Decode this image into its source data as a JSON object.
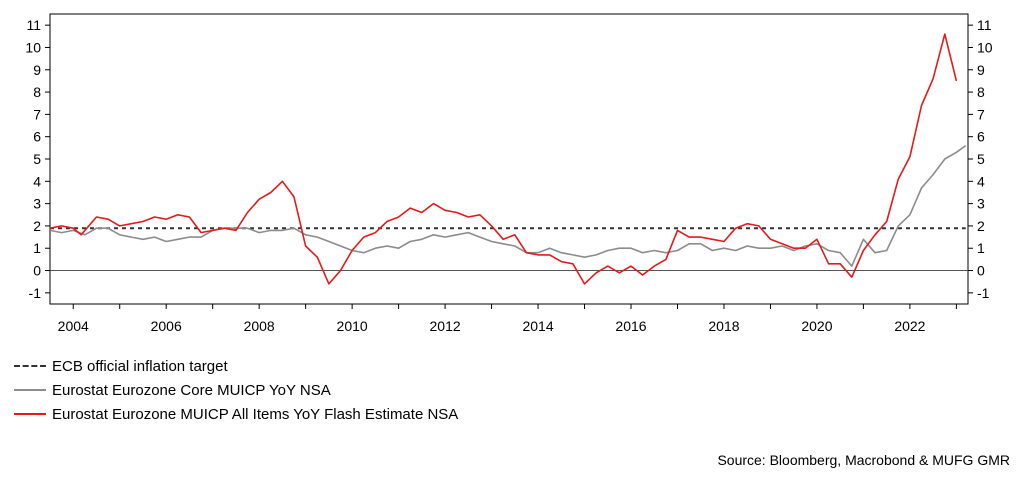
{
  "chart_data": {
    "type": "line",
    "x_range": [
      2003.5,
      2023.25
    ],
    "y_range": [
      -1.5,
      11.5
    ],
    "y_ticks": [
      -1,
      0,
      1,
      2,
      3,
      4,
      5,
      6,
      7,
      8,
      9,
      10,
      11
    ],
    "x_ticks": [
      2004,
      2006,
      2008,
      2010,
      2012,
      2014,
      2016,
      2018,
      2020,
      2022
    ],
    "x_tick_labels": [
      "2004",
      "2006",
      "2008",
      "2010",
      "2012",
      "2014",
      "2016",
      "2018",
      "2020",
      "2022"
    ],
    "zero_line": true,
    "dual_y_axis": true,
    "series": [
      {
        "name": "ECB official inflation target",
        "style": "dashed",
        "color": "#333333",
        "points": [
          [
            2003.5,
            1.9
          ],
          [
            2023.2,
            1.9
          ]
        ]
      },
      {
        "name": "Eurostat Eurozone Core MUICP YoY NSA",
        "style": "solid",
        "color": "#8c8c8c",
        "points": [
          [
            2003.5,
            1.8
          ],
          [
            2003.75,
            1.7
          ],
          [
            2004.0,
            1.8
          ],
          [
            2004.25,
            1.6
          ],
          [
            2004.5,
            1.9
          ],
          [
            2004.75,
            1.9
          ],
          [
            2005.0,
            1.6
          ],
          [
            2005.25,
            1.5
          ],
          [
            2005.5,
            1.4
          ],
          [
            2005.75,
            1.5
          ],
          [
            2006.0,
            1.3
          ],
          [
            2006.25,
            1.4
          ],
          [
            2006.5,
            1.5
          ],
          [
            2006.75,
            1.5
          ],
          [
            2007.0,
            1.8
          ],
          [
            2007.25,
            1.9
          ],
          [
            2007.5,
            1.9
          ],
          [
            2007.75,
            1.9
          ],
          [
            2008.0,
            1.7
          ],
          [
            2008.25,
            1.8
          ],
          [
            2008.5,
            1.8
          ],
          [
            2008.75,
            1.9
          ],
          [
            2009.0,
            1.6
          ],
          [
            2009.25,
            1.5
          ],
          [
            2009.5,
            1.3
          ],
          [
            2009.75,
            1.1
          ],
          [
            2010.0,
            0.9
          ],
          [
            2010.25,
            0.8
          ],
          [
            2010.5,
            1.0
          ],
          [
            2010.75,
            1.1
          ],
          [
            2011.0,
            1.0
          ],
          [
            2011.25,
            1.3
          ],
          [
            2011.5,
            1.4
          ],
          [
            2011.75,
            1.6
          ],
          [
            2012.0,
            1.5
          ],
          [
            2012.25,
            1.6
          ],
          [
            2012.5,
            1.7
          ],
          [
            2012.75,
            1.5
          ],
          [
            2013.0,
            1.3
          ],
          [
            2013.25,
            1.2
          ],
          [
            2013.5,
            1.1
          ],
          [
            2013.75,
            0.8
          ],
          [
            2014.0,
            0.8
          ],
          [
            2014.25,
            1.0
          ],
          [
            2014.5,
            0.8
          ],
          [
            2014.75,
            0.7
          ],
          [
            2015.0,
            0.6
          ],
          [
            2015.25,
            0.7
          ],
          [
            2015.5,
            0.9
          ],
          [
            2015.75,
            1.0
          ],
          [
            2016.0,
            1.0
          ],
          [
            2016.25,
            0.8
          ],
          [
            2016.5,
            0.9
          ],
          [
            2016.75,
            0.8
          ],
          [
            2017.0,
            0.9
          ],
          [
            2017.25,
            1.2
          ],
          [
            2017.5,
            1.2
          ],
          [
            2017.75,
            0.9
          ],
          [
            2018.0,
            1.0
          ],
          [
            2018.25,
            0.9
          ],
          [
            2018.5,
            1.1
          ],
          [
            2018.75,
            1.0
          ],
          [
            2019.0,
            1.0
          ],
          [
            2019.25,
            1.1
          ],
          [
            2019.5,
            0.9
          ],
          [
            2019.75,
            1.1
          ],
          [
            2020.0,
            1.2
          ],
          [
            2020.25,
            0.9
          ],
          [
            2020.5,
            0.8
          ],
          [
            2020.75,
            0.2
          ],
          [
            2021.0,
            1.4
          ],
          [
            2021.25,
            0.8
          ],
          [
            2021.5,
            0.9
          ],
          [
            2021.75,
            2.0
          ],
          [
            2022.0,
            2.5
          ],
          [
            2022.25,
            3.7
          ],
          [
            2022.5,
            4.3
          ],
          [
            2022.75,
            5.0
          ],
          [
            2023.0,
            5.3
          ],
          [
            2023.2,
            5.6
          ]
        ]
      },
      {
        "name": "Eurostat Eurozone MUICP All Items YoY Flash Estimate NSA",
        "style": "solid",
        "color": "#e41a1c",
        "points": [
          [
            2003.5,
            1.9
          ],
          [
            2003.75,
            2.0
          ],
          [
            2004.0,
            1.9
          ],
          [
            2004.17,
            1.6
          ],
          [
            2004.5,
            2.4
          ],
          [
            2004.75,
            2.3
          ],
          [
            2005.0,
            2.0
          ],
          [
            2005.25,
            2.1
          ],
          [
            2005.5,
            2.2
          ],
          [
            2005.75,
            2.4
          ],
          [
            2006.0,
            2.3
          ],
          [
            2006.25,
            2.5
          ],
          [
            2006.5,
            2.4
          ],
          [
            2006.75,
            1.7
          ],
          [
            2007.0,
            1.8
          ],
          [
            2007.25,
            1.9
          ],
          [
            2007.5,
            1.8
          ],
          [
            2007.75,
            2.6
          ],
          [
            2008.0,
            3.2
          ],
          [
            2008.25,
            3.5
          ],
          [
            2008.5,
            4.0
          ],
          [
            2008.75,
            3.3
          ],
          [
            2009.0,
            1.1
          ],
          [
            2009.25,
            0.6
          ],
          [
            2009.5,
            -0.6
          ],
          [
            2009.75,
            0.0
          ],
          [
            2010.0,
            0.9
          ],
          [
            2010.25,
            1.5
          ],
          [
            2010.5,
            1.7
          ],
          [
            2010.75,
            2.2
          ],
          [
            2011.0,
            2.4
          ],
          [
            2011.25,
            2.8
          ],
          [
            2011.5,
            2.6
          ],
          [
            2011.75,
            3.0
          ],
          [
            2012.0,
            2.7
          ],
          [
            2012.25,
            2.6
          ],
          [
            2012.5,
            2.4
          ],
          [
            2012.75,
            2.5
          ],
          [
            2013.0,
            2.0
          ],
          [
            2013.25,
            1.4
          ],
          [
            2013.5,
            1.6
          ],
          [
            2013.75,
            0.8
          ],
          [
            2014.0,
            0.7
          ],
          [
            2014.25,
            0.7
          ],
          [
            2014.5,
            0.4
          ],
          [
            2014.75,
            0.3
          ],
          [
            2015.0,
            -0.6
          ],
          [
            2015.25,
            -0.1
          ],
          [
            2015.5,
            0.2
          ],
          [
            2015.75,
            -0.1
          ],
          [
            2016.0,
            0.2
          ],
          [
            2016.25,
            -0.2
          ],
          [
            2016.5,
            0.2
          ],
          [
            2016.75,
            0.5
          ],
          [
            2017.0,
            1.8
          ],
          [
            2017.25,
            1.5
          ],
          [
            2017.5,
            1.5
          ],
          [
            2017.75,
            1.4
          ],
          [
            2018.0,
            1.3
          ],
          [
            2018.25,
            1.9
          ],
          [
            2018.5,
            2.1
          ],
          [
            2018.75,
            2.0
          ],
          [
            2019.0,
            1.4
          ],
          [
            2019.25,
            1.2
          ],
          [
            2019.5,
            1.0
          ],
          [
            2019.75,
            1.0
          ],
          [
            2020.0,
            1.4
          ],
          [
            2020.25,
            0.3
          ],
          [
            2020.5,
            0.3
          ],
          [
            2020.75,
            -0.3
          ],
          [
            2021.0,
            0.9
          ],
          [
            2021.25,
            1.6
          ],
          [
            2021.5,
            2.2
          ],
          [
            2021.75,
            4.1
          ],
          [
            2022.0,
            5.1
          ],
          [
            2022.25,
            7.4
          ],
          [
            2022.5,
            8.6
          ],
          [
            2022.75,
            10.6
          ],
          [
            2023.0,
            8.5
          ]
        ]
      }
    ]
  },
  "legend": {
    "target": "ECB official inflation target",
    "core": "Eurostat Eurozone Core MUICP YoY NSA",
    "headline": "Eurostat Eurozone MUICP All Items YoY Flash Estimate NSA"
  },
  "source": "Source: Bloomberg, Macrobond & MUFG GMR"
}
